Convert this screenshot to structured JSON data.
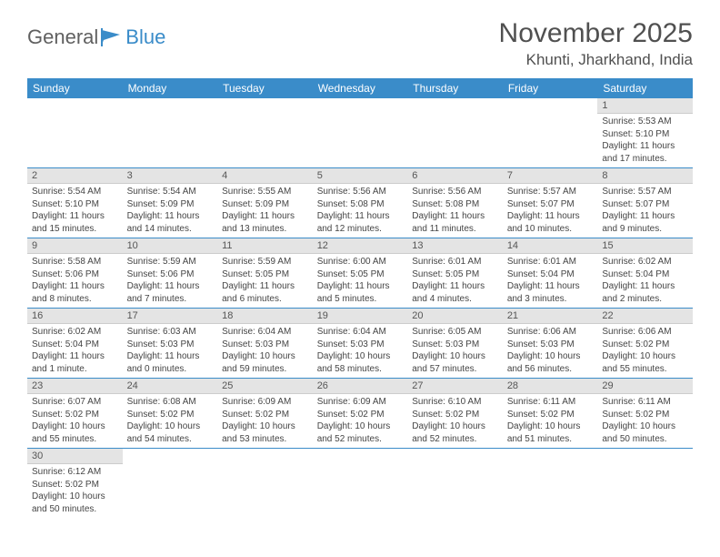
{
  "logo": {
    "text_general": "General",
    "text_blue": "Blue"
  },
  "title": "November 2025",
  "location": "Khunti, Jharkhand, India",
  "weekdays": [
    "Sunday",
    "Monday",
    "Tuesday",
    "Wednesday",
    "Thursday",
    "Friday",
    "Saturday"
  ],
  "colors": {
    "header_bg": "#3a8cc9",
    "header_text": "#ffffff",
    "daynum_bg": "#e4e4e4",
    "border": "#3a8cc9",
    "text": "#444444",
    "title_text": "#505050"
  },
  "grid": [
    [
      null,
      null,
      null,
      null,
      null,
      null,
      {
        "n": "1",
        "sr": "5:53 AM",
        "ss": "5:10 PM",
        "dl": "11 hours and 17 minutes."
      }
    ],
    [
      {
        "n": "2",
        "sr": "5:54 AM",
        "ss": "5:10 PM",
        "dl": "11 hours and 15 minutes."
      },
      {
        "n": "3",
        "sr": "5:54 AM",
        "ss": "5:09 PM",
        "dl": "11 hours and 14 minutes."
      },
      {
        "n": "4",
        "sr": "5:55 AM",
        "ss": "5:09 PM",
        "dl": "11 hours and 13 minutes."
      },
      {
        "n": "5",
        "sr": "5:56 AM",
        "ss": "5:08 PM",
        "dl": "11 hours and 12 minutes."
      },
      {
        "n": "6",
        "sr": "5:56 AM",
        "ss": "5:08 PM",
        "dl": "11 hours and 11 minutes."
      },
      {
        "n": "7",
        "sr": "5:57 AM",
        "ss": "5:07 PM",
        "dl": "11 hours and 10 minutes."
      },
      {
        "n": "8",
        "sr": "5:57 AM",
        "ss": "5:07 PM",
        "dl": "11 hours and 9 minutes."
      }
    ],
    [
      {
        "n": "9",
        "sr": "5:58 AM",
        "ss": "5:06 PM",
        "dl": "11 hours and 8 minutes."
      },
      {
        "n": "10",
        "sr": "5:59 AM",
        "ss": "5:06 PM",
        "dl": "11 hours and 7 minutes."
      },
      {
        "n": "11",
        "sr": "5:59 AM",
        "ss": "5:05 PM",
        "dl": "11 hours and 6 minutes."
      },
      {
        "n": "12",
        "sr": "6:00 AM",
        "ss": "5:05 PM",
        "dl": "11 hours and 5 minutes."
      },
      {
        "n": "13",
        "sr": "6:01 AM",
        "ss": "5:05 PM",
        "dl": "11 hours and 4 minutes."
      },
      {
        "n": "14",
        "sr": "6:01 AM",
        "ss": "5:04 PM",
        "dl": "11 hours and 3 minutes."
      },
      {
        "n": "15",
        "sr": "6:02 AM",
        "ss": "5:04 PM",
        "dl": "11 hours and 2 minutes."
      }
    ],
    [
      {
        "n": "16",
        "sr": "6:02 AM",
        "ss": "5:04 PM",
        "dl": "11 hours and 1 minute."
      },
      {
        "n": "17",
        "sr": "6:03 AM",
        "ss": "5:03 PM",
        "dl": "11 hours and 0 minutes."
      },
      {
        "n": "18",
        "sr": "6:04 AM",
        "ss": "5:03 PM",
        "dl": "10 hours and 59 minutes."
      },
      {
        "n": "19",
        "sr": "6:04 AM",
        "ss": "5:03 PM",
        "dl": "10 hours and 58 minutes."
      },
      {
        "n": "20",
        "sr": "6:05 AM",
        "ss": "5:03 PM",
        "dl": "10 hours and 57 minutes."
      },
      {
        "n": "21",
        "sr": "6:06 AM",
        "ss": "5:03 PM",
        "dl": "10 hours and 56 minutes."
      },
      {
        "n": "22",
        "sr": "6:06 AM",
        "ss": "5:02 PM",
        "dl": "10 hours and 55 minutes."
      }
    ],
    [
      {
        "n": "23",
        "sr": "6:07 AM",
        "ss": "5:02 PM",
        "dl": "10 hours and 55 minutes."
      },
      {
        "n": "24",
        "sr": "6:08 AM",
        "ss": "5:02 PM",
        "dl": "10 hours and 54 minutes."
      },
      {
        "n": "25",
        "sr": "6:09 AM",
        "ss": "5:02 PM",
        "dl": "10 hours and 53 minutes."
      },
      {
        "n": "26",
        "sr": "6:09 AM",
        "ss": "5:02 PM",
        "dl": "10 hours and 52 minutes."
      },
      {
        "n": "27",
        "sr": "6:10 AM",
        "ss": "5:02 PM",
        "dl": "10 hours and 52 minutes."
      },
      {
        "n": "28",
        "sr": "6:11 AM",
        "ss": "5:02 PM",
        "dl": "10 hours and 51 minutes."
      },
      {
        "n": "29",
        "sr": "6:11 AM",
        "ss": "5:02 PM",
        "dl": "10 hours and 50 minutes."
      }
    ],
    [
      {
        "n": "30",
        "sr": "6:12 AM",
        "ss": "5:02 PM",
        "dl": "10 hours and 50 minutes."
      },
      null,
      null,
      null,
      null,
      null,
      null
    ]
  ],
  "labels": {
    "sunrise": "Sunrise: ",
    "sunset": "Sunset: ",
    "daylight": "Daylight: "
  }
}
